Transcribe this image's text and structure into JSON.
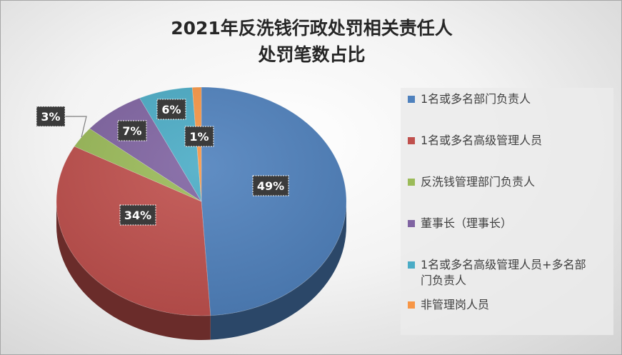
{
  "chart_data": {
    "type": "pie",
    "title": [
      "2021年反洗钱行政处罚相关责任人",
      "处罚笔数占比"
    ],
    "categories": [
      "1名或多名部门负责人",
      "1名或多名高级管理人员",
      "反洗钱管理部门负责人",
      "董事长（理事长）",
      "1名或多名高级管理人员+多名部门负责人",
      "非管理岗人员"
    ],
    "legend_labels": [
      [
        "1名或多名部门负责人"
      ],
      [
        "1名或多名高级管理人员"
      ],
      [
        "反洗钱管理部门负责人"
      ],
      [
        "董事长（理事长）"
      ],
      [
        "1名或多名高级管理人员+多名部",
        "门负责人"
      ],
      [
        "非管理岗人员"
      ]
    ],
    "values": [
      49,
      34,
      3,
      7,
      6,
      1
    ],
    "data_labels": [
      "49%",
      "34%",
      "3%",
      "7%",
      "6%",
      "1%"
    ],
    "colors": [
      "#4f81bd",
      "#c0504d",
      "#9bbb59",
      "#8064a2",
      "#4bacc6",
      "#f79646"
    ],
    "style": "3d-pie",
    "legend_position": "right"
  }
}
